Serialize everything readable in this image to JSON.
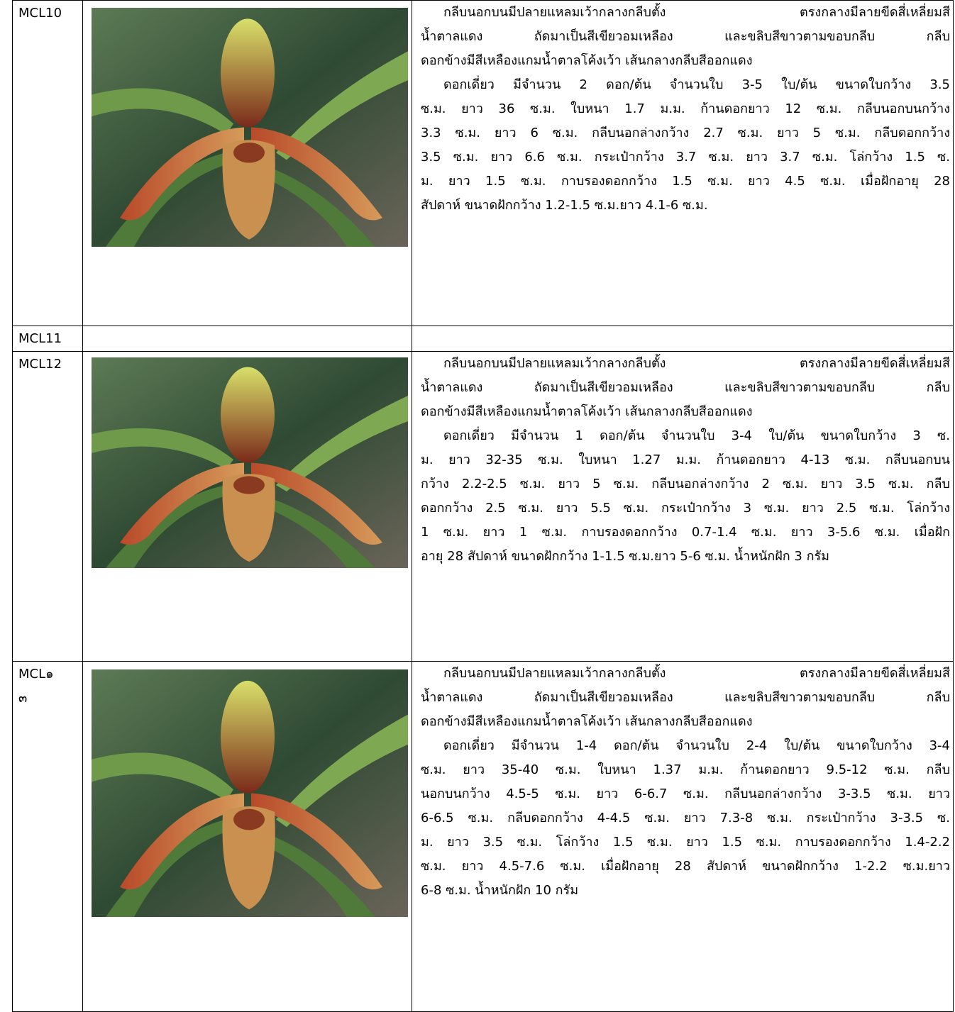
{
  "table": {
    "rows": [
      {
        "id": [
          "MCL10"
        ],
        "paragraphs": [
          [
            "กลีบนอกบนมีปลายแหลมเว้ากลางกลีบตั้ง ตรงกลางมีลายขีดสี่เหลี่ยมสี",
            "น้ำตาลแดง ถัดมาเป็นสีเขียวอมเหลือง และขลิบสีขาวตามขอบกลีบ  กลีบ",
            "ดอกข้างมีสีเหลืองแกมน้ำตาลโค้งเว้า เส้นกลางกลีบสีออกแดง"
          ],
          [
            "ดอกเดี่ยว มีจำนวน 2 ดอก/ต้น จำนวนใบ 3-5 ใบ/ต้น ขนาดใบกว้าง 3.5",
            "ซ.ม. ยาว 36 ซ.ม. ใบหนา 1.7 ม.ม. ก้านดอกยาว 12 ซ.ม. กลีบนอกบนกว้าง",
            "3.3 ซ.ม. ยาว 6 ซ.ม. กลีบนอกล่างกว้าง 2.7 ซ.ม. ยาว 5 ซ.ม. กลีบดอกกว้าง",
            "3.5 ซ.ม. ยาว 6.6 ซ.ม. กระเป๋ากว้าง 3.7 ซ.ม. ยาว 3.7 ซ.ม. โล่กว้าง 1.5 ซ.",
            "ม. ยาว 1.5 ซ.ม. กาบรองดอกกว้าง 1.5 ซ.ม. ยาว 4.5 ซ.ม. เมื่อฝักอายุ 28",
            "สัปดาห์ ขนาดฝักกว้าง 1.2-1.5 ซ.ม.ยาว 4.1-6 ซ.ม."
          ]
        ]
      },
      {
        "id": [
          "MCL11"
        ],
        "paragraphs": []
      },
      {
        "id": [
          "MCL12"
        ],
        "paragraphs": [
          [
            "กลีบนอกบนมีปลายแหลมเว้ากลางกลีบตั้ง ตรงกลางมีลายขีดสี่เหลี่ยมสี",
            "น้ำตาลแดง ถัดมาเป็นสีเขียวอมเหลือง และขลิบสีขาวตามขอบกลีบ  กลีบ",
            "ดอกข้างมีสีเหลืองแกมน้ำตาลโค้งเว้า เส้นกลางกลีบสีออกแดง"
          ],
          [
            "ดอกเดี่ยว มีจำนวน 1 ดอก/ต้น จำนวนใบ 3-4 ใบ/ต้น ขนาดใบกว้าง 3 ซ.",
            "ม. ยาว 32-35 ซ.ม. ใบหนา 1.27  ม.ม. ก้านดอกยาว 4-13 ซ.ม. กลีบนอกบน",
            "กว้าง 2.2-2.5 ซ.ม. ยาว 5 ซ.ม. กลีบนอกล่างกว้าง 2 ซ.ม. ยาว 3.5 ซ.ม. กลีบ",
            "ดอกกว้าง 2.5 ซ.ม. ยาว 5.5 ซ.ม. กระเป๋ากว้าง 3 ซ.ม. ยาว 2.5 ซ.ม. โล่กว้าง",
            "1 ซ.ม. ยาว 1 ซ.ม. กาบรองดอกกว้าง 0.7-1.4 ซ.ม. ยาว 3-5.6 ซ.ม. เมื่อฝัก",
            "อายุ 28 สัปดาห์ ขนาดฝักกว้าง 1-1.5 ซ.ม.ยาว 5-6 ซ.ม. น้ำหนักฝัก 3 กรัม"
          ]
        ]
      },
      {
        "id": [
          "MCL๑",
          "๓"
        ],
        "paragraphs": [
          [
            "กลีบนอกบนมีปลายแหลมเว้ากลางกลีบตั้ง ตรงกลางมีลายขีดสี่เหลี่ยมสี",
            "น้ำตาลแดง ถัดมาเป็นสีเขียวอมเหลือง และขลิบสีขาวตามขอบกลีบ  กลีบ",
            "ดอกข้างมีสีเหลืองแกมน้ำตาลโค้งเว้า เส้นกลางกลีบสีออกแดง"
          ],
          [
            "ดอกเดี่ยว มีจำนวน 1-4 ดอก/ต้น จำนวนใบ 2-4 ใบ/ต้น ขนาดใบกว้าง 3-4",
            "ซ.ม. ยาว 35-40 ซ.ม. ใบหนา 1.37  ม.ม. ก้านดอกยาว 9.5-12 ซ.ม. กลีบ",
            "นอกบนกว้าง 4.5-5 ซ.ม. ยาว 6-6.7 ซ.ม. กลีบนอกล่างกว้าง 3-3.5 ซ.ม. ยาว",
            "6-6.5 ซ.ม. กลีบดอกกว้าง 4-4.5 ซ.ม. ยาว 7.3-8 ซ.ม. กระเป๋ากว้าง 3-3.5 ซ.",
            "ม. ยาว 3.5 ซ.ม. โล่กว้าง 1.5 ซ.ม. ยาว 1.5 ซ.ม. กาบรองดอกกว้าง 1.4-2.2",
            "ซ.ม. ยาว 4.5-7.6 ซ.ม. เมื่อฝักอายุ 28 สัปดาห์ ขนาดฝักกว้าง 1-2.2 ซ.ม.ยาว",
            "6-8 ซ.ม. น้ำหนักฝัก 10 กรัม"
          ]
        ]
      }
    ]
  }
}
